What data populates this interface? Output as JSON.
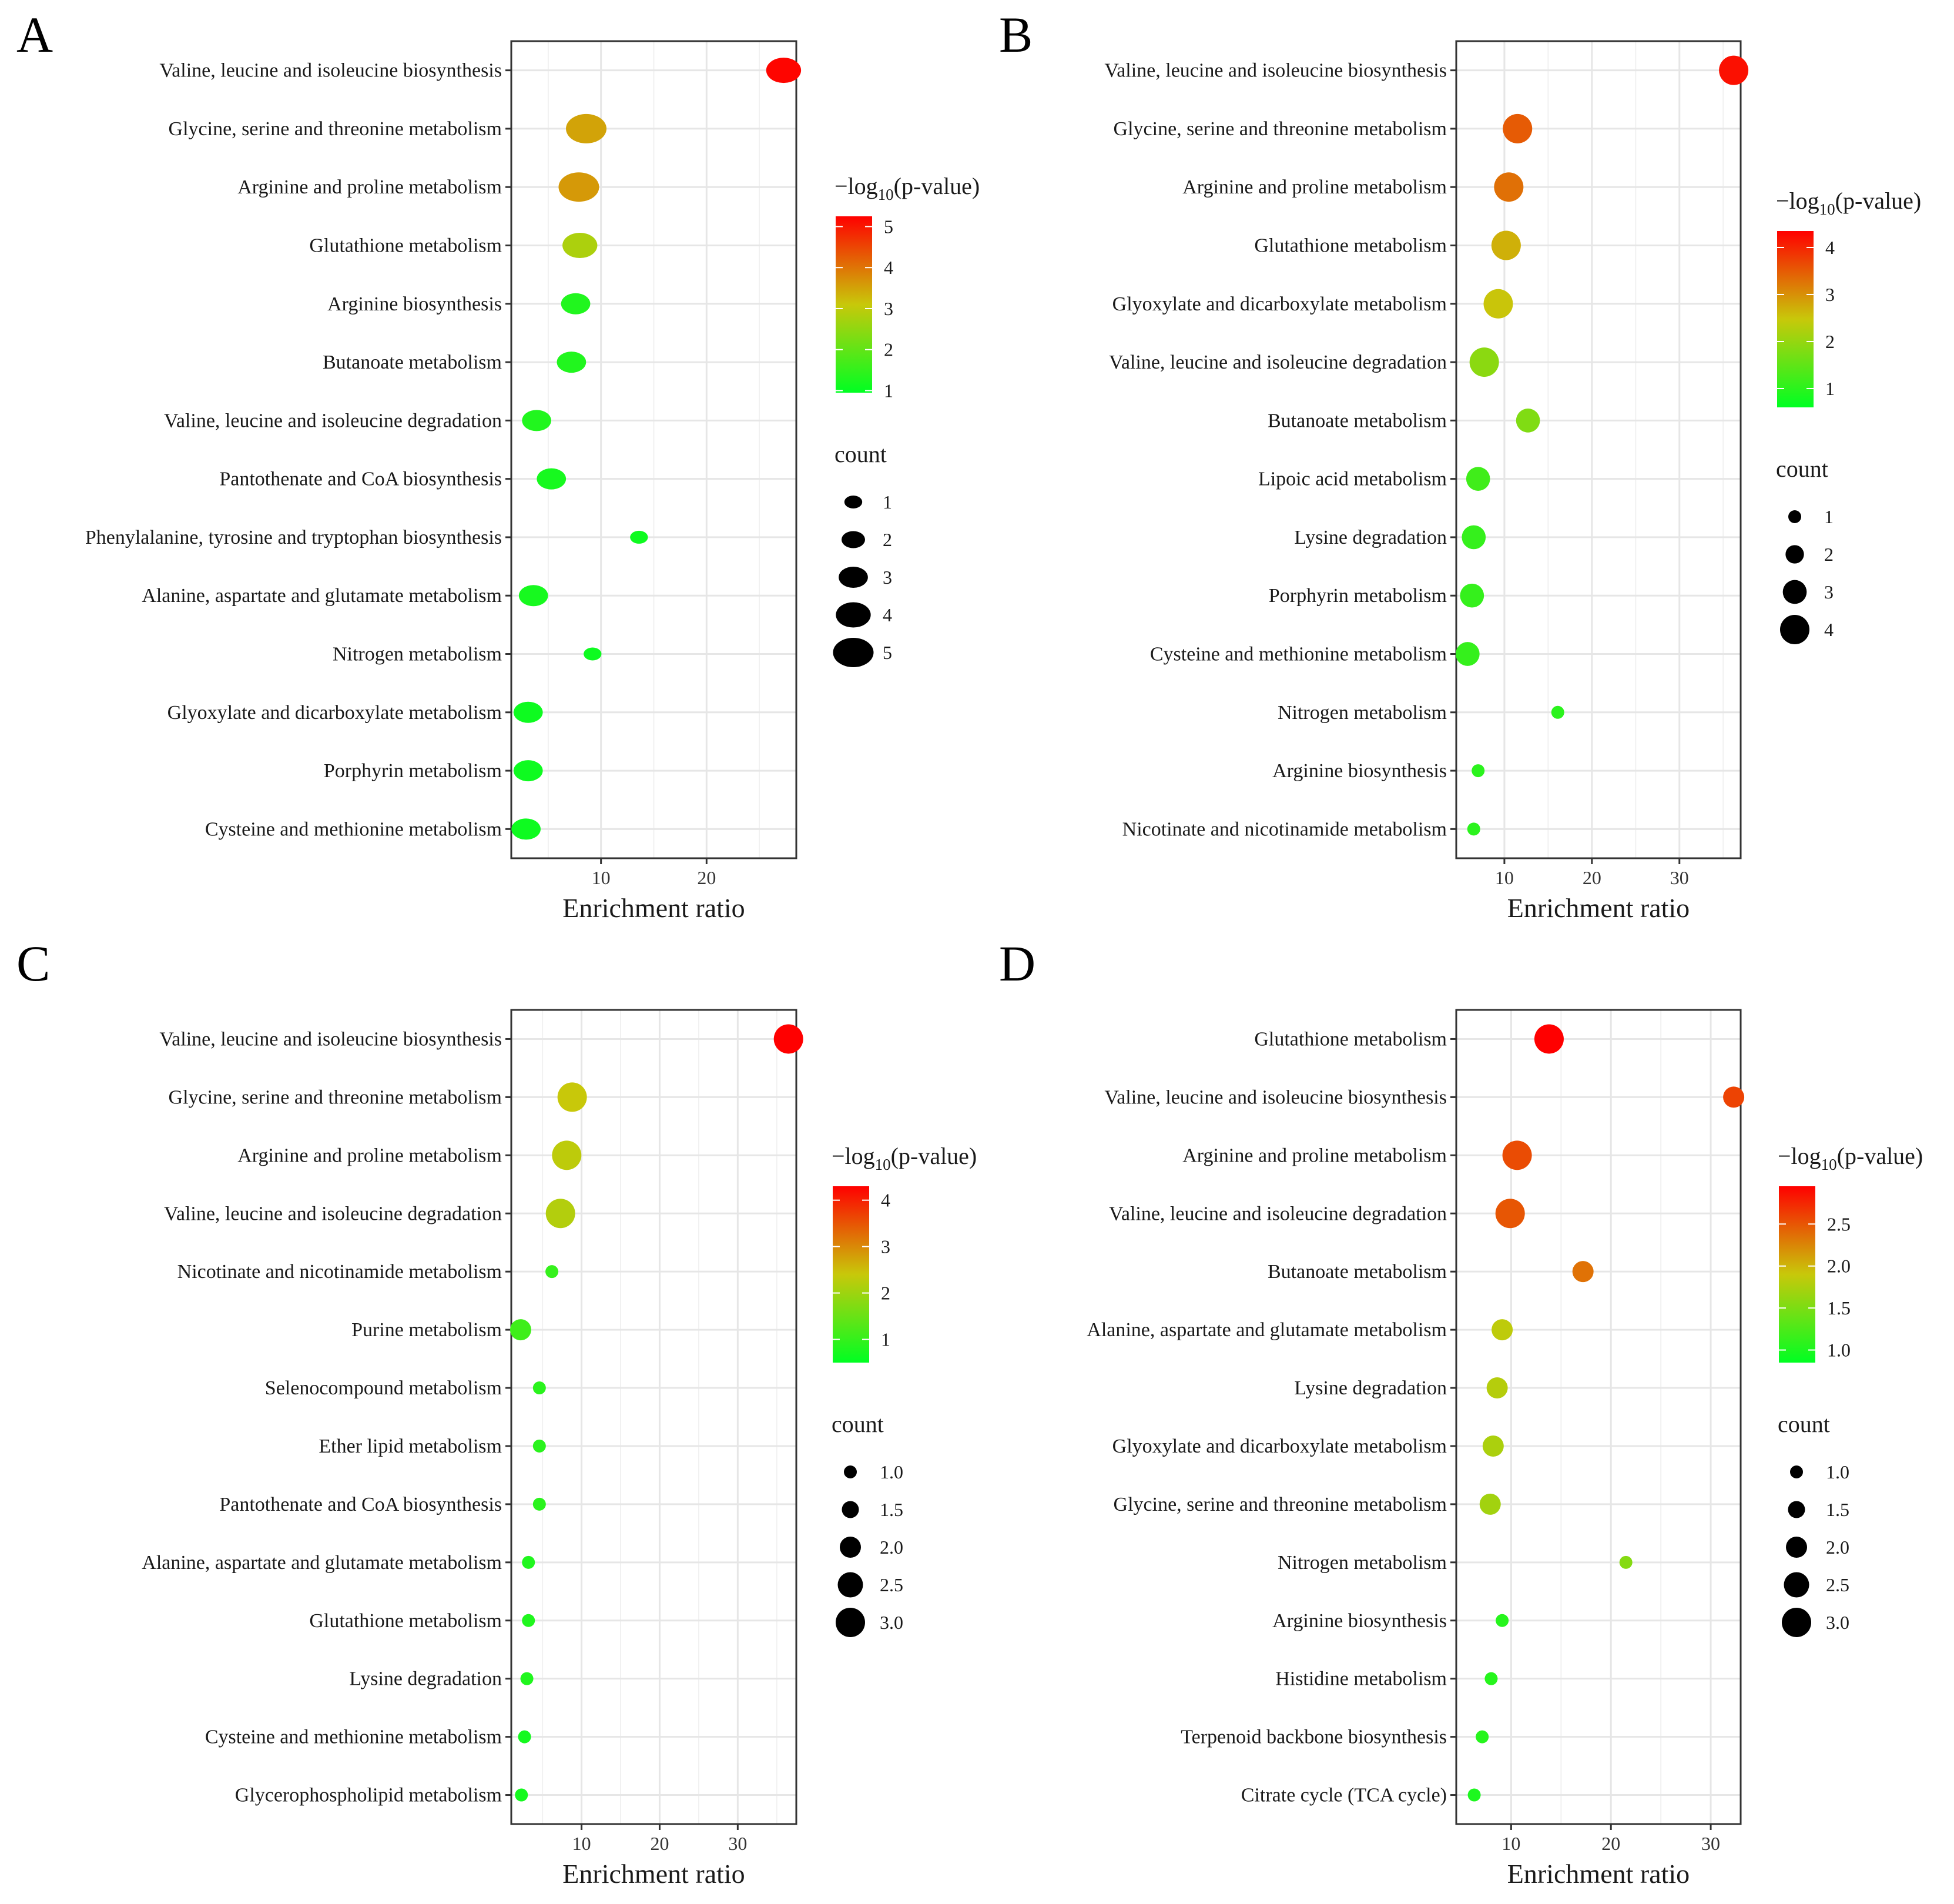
{
  "panels": [
    "A",
    "B",
    "C",
    "D"
  ],
  "colors": {
    "low": "#00ff22",
    "mid": "#c8c80a",
    "high": "#ff0000",
    "grid": "#e6e6e6",
    "border": "#333333"
  },
  "chart_data": [
    {
      "panel": "A",
      "type": "scatter",
      "xlabel": "Enrichment ratio",
      "xlim": [
        1.5,
        28.5
      ],
      "xticks": [
        10,
        20
      ],
      "xgrid_minor": [
        5,
        15,
        25
      ],
      "color_legend": {
        "title_prefix": "−log",
        "title_sub": "10",
        "title_suffix": "(p-value)",
        "ticks": [
          "1",
          "2",
          "3",
          "4",
          "5"
        ],
        "ticks_num": [
          1,
          2,
          3,
          4,
          5
        ],
        "range": [
          0.95,
          5.25
        ]
      },
      "size_legend": {
        "title": "count",
        "labels": [
          "1",
          "2",
          "3",
          "4",
          "5"
        ],
        "values": [
          1,
          2,
          3,
          4,
          5
        ],
        "range": [
          1,
          5
        ]
      },
      "ellipse": true,
      "categories": [
        "Valine, leucine and isoleucine biosynthesis",
        "Glycine, serine and threonine metabolism",
        "Arginine and proline metabolism",
        "Glutathione metabolism",
        "Arginine biosynthesis",
        "Butanoate metabolism",
        "Valine, leucine and isoleucine degradation",
        "Pantothenate and CoA biosynthesis",
        "Phenylalanine, tyrosine and tryptophan biosynthesis",
        "Alanine, aspartate and glutamate metabolism",
        "Nitrogen metabolism",
        "Glyoxylate and dicarboxylate metabolism",
        "Porphyrin metabolism",
        "Cysteine and methionine metabolism"
      ],
      "x": [
        27.3,
        8.6,
        7.9,
        8.0,
        7.6,
        7.2,
        3.9,
        5.3,
        13.6,
        3.6,
        9.2,
        3.1,
        3.1,
        2.9
      ],
      "neglog10p": [
        5.2,
        3.5,
        3.6,
        2.8,
        1.3,
        1.3,
        1.3,
        1.2,
        1.1,
        1.2,
        1.1,
        1.1,
        1.1,
        1.1
      ],
      "count": [
        4,
        5,
        5,
        4,
        3,
        3,
        3,
        3,
        1,
        3,
        1,
        3,
        3,
        3
      ]
    },
    {
      "panel": "B",
      "type": "scatter",
      "xlabel": "Enrichment ratio",
      "xlim": [
        4.5,
        37.0
      ],
      "xticks": [
        10,
        20,
        30
      ],
      "xgrid_minor": [
        15,
        25,
        35
      ],
      "color_legend": {
        "title_prefix": "−log",
        "title_sub": "10",
        "title_suffix": "(p-value)",
        "ticks": [
          "1",
          "2",
          "3",
          "4"
        ],
        "ticks_num": [
          1,
          2,
          3,
          4
        ],
        "range": [
          0.6,
          4.35
        ]
      },
      "size_legend": {
        "title": "count",
        "labels": [
          "1",
          "2",
          "3",
          "4"
        ],
        "values": [
          1,
          2,
          3,
          4
        ],
        "range": [
          1,
          4
        ]
      },
      "ellipse": false,
      "categories": [
        "Valine, leucine and isoleucine biosynthesis",
        "Glycine, serine and threonine metabolism",
        "Arginine and proline metabolism",
        "Glutathione metabolism",
        "Glyoxylate and dicarboxylate metabolism",
        "Valine, leucine and isoleucine degradation",
        "Butanoate metabolism",
        "Lipoic acid metabolism",
        "Lysine degradation",
        "Porphyrin metabolism",
        "Cysteine and methionine metabolism",
        "Nitrogen metabolism",
        "Arginine biosynthesis",
        "Nicotinate and nicotinamide metabolism"
      ],
      "x": [
        36.2,
        11.5,
        10.5,
        10.2,
        9.3,
        7.7,
        12.7,
        7.0,
        6.5,
        6.3,
        5.8,
        16.1,
        7.0,
        6.5
      ],
      "neglog10p": [
        4.2,
        3.5,
        3.3,
        2.7,
        2.5,
        1.9,
        1.8,
        1.2,
        1.1,
        1.1,
        1.1,
        1.0,
        1.0,
        1.0
      ],
      "count": [
        4,
        4,
        4,
        4,
        4,
        4,
        3,
        3,
        3,
        3,
        3,
        1,
        1,
        1
      ]
    },
    {
      "panel": "C",
      "type": "scatter",
      "xlabel": "Enrichment ratio",
      "xlim": [
        1.0,
        37.5
      ],
      "xticks": [
        10,
        20,
        30
      ],
      "xgrid_minor": [
        5,
        15,
        25,
        35
      ],
      "color_legend": {
        "title_prefix": "−log",
        "title_sub": "10",
        "title_suffix": "(p-value)",
        "ticks": [
          "1",
          "2",
          "3",
          "4"
        ],
        "ticks_num": [
          1,
          2,
          3,
          4
        ],
        "range": [
          0.5,
          4.3
        ]
      },
      "size_legend": {
        "title": "count",
        "labels": [
          "1.0",
          "1.5",
          "2.0",
          "2.5",
          "3.0"
        ],
        "values": [
          1,
          1.5,
          2,
          2.5,
          3
        ],
        "range": [
          1,
          3
        ]
      },
      "ellipse": false,
      "categories": [
        "Valine, leucine and isoleucine biosynthesis",
        "Glycine, serine and threonine metabolism",
        "Arginine and proline metabolism",
        "Valine, leucine and isoleucine degradation",
        "Nicotinate and nicotinamide metabolism",
        "Purine metabolism",
        "Selenocompound metabolism",
        "Ether lipid metabolism",
        "Pantothenate and CoA biosynthesis",
        "Alanine, aspartate and glutamate metabolism",
        "Glutathione metabolism",
        "Lysine degradation",
        "Cysteine and methionine metabolism",
        "Glycerophospholipid metabolism"
      ],
      "x": [
        36.5,
        8.8,
        8.1,
        7.3,
        6.2,
        2.2,
        4.6,
        4.6,
        4.6,
        3.2,
        3.2,
        3.0,
        2.7,
        2.3
      ],
      "neglog10p": [
        4.3,
        2.4,
        2.3,
        2.2,
        1.0,
        1.1,
        0.9,
        0.9,
        0.9,
        0.8,
        0.8,
        0.8,
        0.7,
        0.7
      ],
      "count": [
        3,
        3,
        3,
        3,
        1,
        2,
        1,
        1,
        1,
        1,
        1,
        1,
        1,
        1
      ]
    },
    {
      "panel": "D",
      "type": "scatter",
      "xlabel": "Enrichment ratio",
      "xlim": [
        4.5,
        33.0
      ],
      "xticks": [
        10,
        20,
        30
      ],
      "xgrid_minor": [
        15,
        25
      ],
      "color_legend": {
        "title_prefix": "−log",
        "title_sub": "10",
        "title_suffix": "(p-value)",
        "ticks": [
          "1.0",
          "1.5",
          "2.0",
          "2.5"
        ],
        "ticks_num": [
          1.0,
          1.5,
          2.0,
          2.5
        ],
        "range": [
          0.85,
          2.95
        ]
      },
      "size_legend": {
        "title": "count",
        "labels": [
          "1.0",
          "1.5",
          "2.0",
          "2.5",
          "3.0"
        ],
        "values": [
          1,
          1.5,
          2,
          2.5,
          3
        ],
        "range": [
          1,
          3
        ]
      },
      "ellipse": false,
      "categories": [
        "Glutathione metabolism",
        "Valine, leucine and isoleucine biosynthesis",
        "Arginine and proline metabolism",
        "Valine, leucine and isoleucine degradation",
        "Butanoate metabolism",
        "Alanine, aspartate and glutamate metabolism",
        "Lysine degradation",
        "Glyoxylate and dicarboxylate metabolism",
        "Glycine, serine and threonine metabolism",
        "Nitrogen metabolism",
        "Arginine biosynthesis",
        "Histidine metabolism",
        "Terpenoid backbone biosynthesis",
        "Citrate cycle (TCA cycle)"
      ],
      "x": [
        13.8,
        32.3,
        10.6,
        9.9,
        17.2,
        9.1,
        8.6,
        8.2,
        7.9,
        21.5,
        9.1,
        8.0,
        7.1,
        6.3
      ],
      "neglog10p": [
        2.95,
        2.6,
        2.55,
        2.5,
        2.35,
        1.85,
        1.8,
        1.75,
        1.7,
        1.55,
        1.05,
        1.05,
        1.05,
        1.0
      ],
      "count": [
        3,
        2,
        3,
        3,
        2,
        2,
        2,
        2,
        2,
        1,
        1,
        1,
        1,
        1
      ]
    }
  ]
}
